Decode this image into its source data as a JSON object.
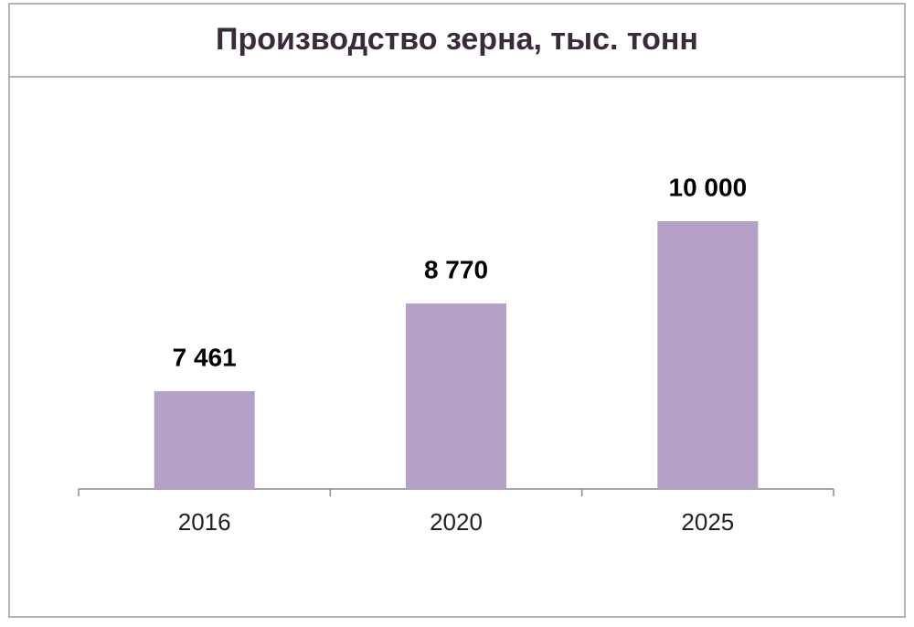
{
  "chart_data": {
    "type": "bar",
    "title": "Производство зерна, тыс. тонн",
    "categories": [
      "2016",
      "2020",
      "2025"
    ],
    "values": [
      7461,
      8770,
      10000
    ],
    "value_labels": [
      "7 461",
      "8 770",
      "10 000"
    ],
    "color": "#b5a0c6",
    "ylim": [
      6000,
      10000
    ]
  }
}
